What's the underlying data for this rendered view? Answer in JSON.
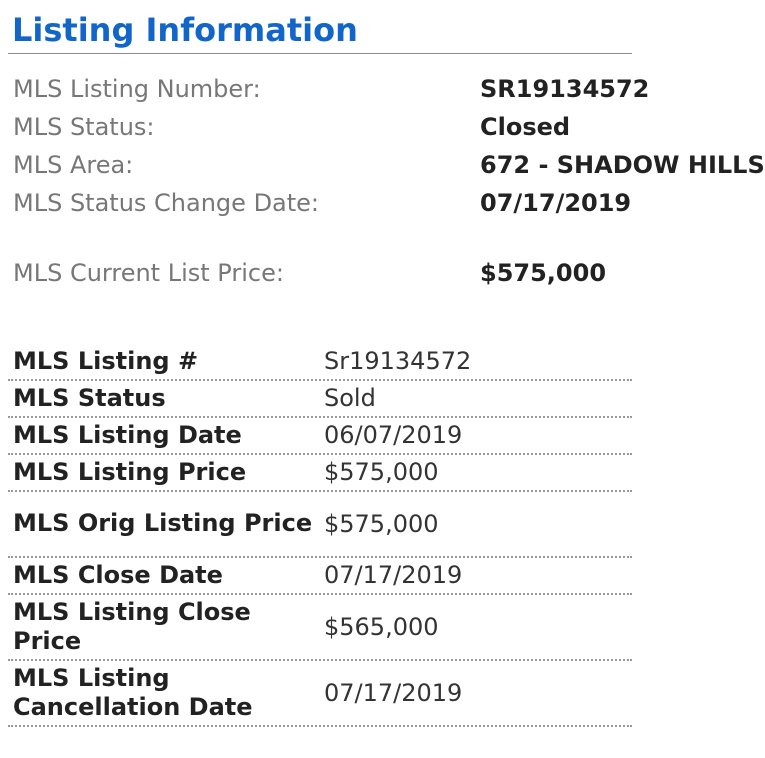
{
  "header": {
    "title": "Listing Information"
  },
  "summary": {
    "rows": [
      {
        "label": "MLS Listing Number:",
        "value": "SR19134572"
      },
      {
        "label": "MLS Status:",
        "value": "Closed"
      },
      {
        "label": "MLS Area:",
        "value": "672 - SHADOW HILLS"
      },
      {
        "label": "MLS Status Change Date:",
        "value": "07/17/2019"
      },
      {
        "label": "MLS Current List Price:",
        "value": "$575,000"
      }
    ]
  },
  "details": {
    "rows": [
      {
        "label": "MLS Listing #",
        "value": "Sr19134572"
      },
      {
        "label": "MLS Status",
        "value": "Sold"
      },
      {
        "label": "MLS Listing Date",
        "value": "06/07/2019"
      },
      {
        "label": "MLS Listing Price",
        "value": "$575,000"
      },
      {
        "label": "MLS Orig Listing Price",
        "value": "$575,000"
      },
      {
        "label": "MLS Close Date",
        "value": "07/17/2019"
      },
      {
        "label": "MLS Listing Close Price",
        "value": "$565,000"
      },
      {
        "label": "MLS Listing Cancellation Date",
        "value": "07/17/2019"
      }
    ]
  }
}
